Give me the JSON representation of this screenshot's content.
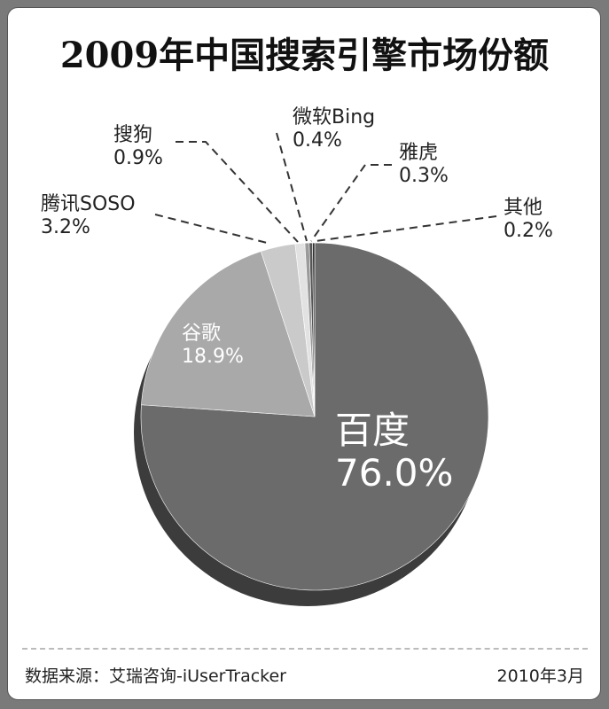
{
  "chart_data": {
    "type": "pie",
    "title": "2009年中国搜索引擎市场份额",
    "slices": [
      {
        "name": "百度",
        "value": 76.0,
        "label": "76.0%",
        "color": "#6b6b6b"
      },
      {
        "name": "谷歌",
        "value": 18.9,
        "label": "18.9%",
        "color": "#a9a9a9"
      },
      {
        "name": "腾讯SOSO",
        "value": 3.2,
        "label": "3.2%",
        "color": "#cacaca"
      },
      {
        "name": "搜狗",
        "value": 0.9,
        "label": "0.9%",
        "color": "#e2e2e2"
      },
      {
        "name": "微软Bing",
        "value": 0.4,
        "label": "0.4%",
        "color": "#9a9a9a"
      },
      {
        "name": "雅虎",
        "value": 0.3,
        "label": "0.3%",
        "color": "#555555"
      },
      {
        "name": "其他",
        "value": 0.2,
        "label": "0.2%",
        "color": "#2e2e2e"
      }
    ],
    "start": "12 o'clock",
    "direction": "clockwise",
    "style": "3d"
  },
  "footer": {
    "source": "数据来源：艾瑞咨询-iUserTracker",
    "date": "2010年3月"
  }
}
